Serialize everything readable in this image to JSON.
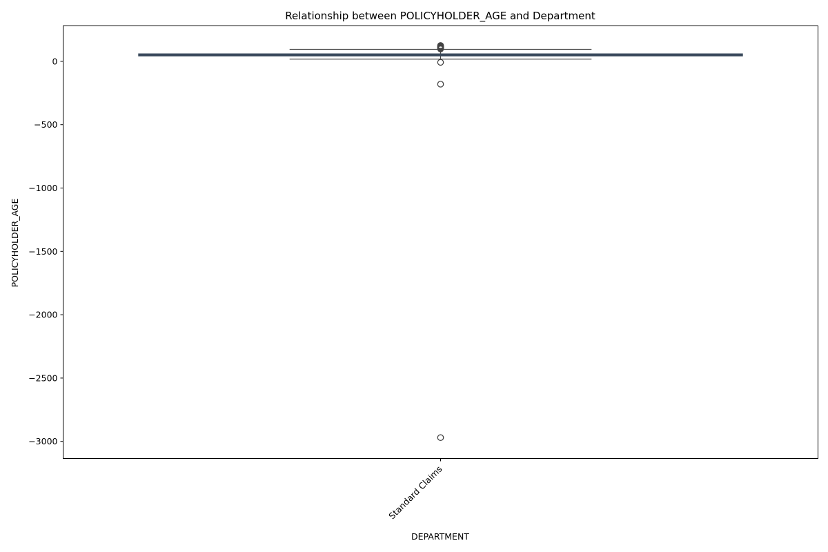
{
  "chart_data": {
    "type": "box",
    "title": "Relationship between POLICYHOLDER_AGE and Department",
    "xlabel": "DEPARTMENT",
    "ylabel": "POLICYHOLDER_AGE",
    "categories": [
      "Standard Claims"
    ],
    "ylim": [
      -3135,
      280
    ],
    "yticks": [
      0,
      -500,
      -1000,
      -1500,
      -2000,
      -2500,
      -3000
    ],
    "ytick_labels": [
      "0",
      "−500",
      "−1000",
      "−1500",
      "−2000",
      "−2500",
      "−3000"
    ],
    "boxes": [
      {
        "category": "Standard Claims",
        "whisker_low": 18,
        "q1": 43,
        "median": 51,
        "q3": 59,
        "whisker_high": 95,
        "outliers": [
          98,
          102,
          106,
          110,
          115,
          120,
          125,
          -8,
          -180,
          -2970
        ]
      }
    ],
    "colors": {
      "box_fill": "#3a4b60",
      "box_edge": "#3b4a5c",
      "whisker": "#444444",
      "outlier_edge": "#444444"
    },
    "grid": false,
    "legend": "none"
  }
}
